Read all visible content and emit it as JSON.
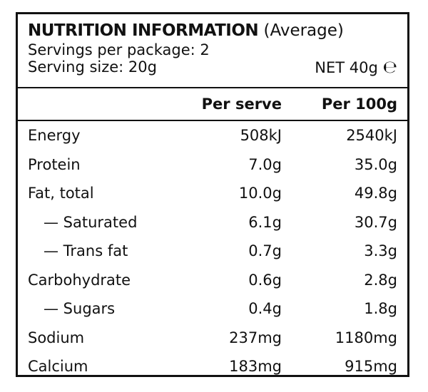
{
  "header": {
    "title": "NUTRITION INFORMATION",
    "title_suffix": "(Average)",
    "servings_per_package": "Servings per package: 2",
    "serving_size": "Serving size: 20g",
    "net": "NET 40g",
    "estimated_sign": "℮"
  },
  "columns": {
    "per_serve": "Per serve",
    "per_100g": "Per 100g"
  },
  "rows": [
    {
      "label": "Energy",
      "per_serve": "508kJ",
      "per_100g": "2540kJ",
      "indent": false
    },
    {
      "label": "Protein",
      "per_serve": "7.0g",
      "per_100g": "35.0g",
      "indent": false
    },
    {
      "label": "Fat, total",
      "per_serve": "10.0g",
      "per_100g": "49.8g",
      "indent": false
    },
    {
      "label": "— Saturated",
      "per_serve": "6.1g",
      "per_100g": "30.7g",
      "indent": true
    },
    {
      "label": "— Trans fat",
      "per_serve": "0.7g",
      "per_100g": "3.3g",
      "indent": true
    },
    {
      "label": "Carbohydrate",
      "per_serve": "0.6g",
      "per_100g": "2.8g",
      "indent": false
    },
    {
      "label": "— Sugars",
      "per_serve": "0.4g",
      "per_100g": "1.8g",
      "indent": true
    },
    {
      "label": "Sodium",
      "per_serve": "237mg",
      "per_100g": "1180mg",
      "indent": false
    },
    {
      "label": "Calcium",
      "per_serve": "183mg",
      "per_100g": "915mg",
      "indent": false
    }
  ]
}
